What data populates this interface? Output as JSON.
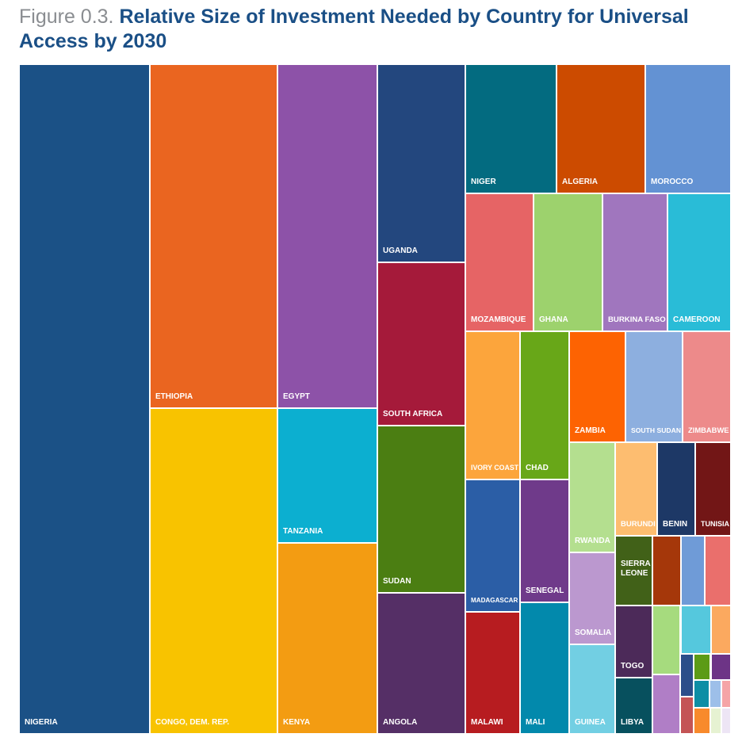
{
  "figure": {
    "prefix": "Figure 0.3.",
    "title": "Relative Size of Investment Needed by Country for Universal Access by 2030"
  },
  "chart_data": {
    "type": "treemap",
    "title": "Relative Size of Investment Needed by Country for Universal Access by 2030",
    "units": "relative investment (estimated from tile area, % of total)",
    "items": [
      {
        "label": "NIGERIA",
        "value": 18.0,
        "color": "#1b5186"
      },
      {
        "label": "ETHIOPIA",
        "value": 8.4,
        "color": "#ea6520"
      },
      {
        "label": "CONGO, DEM. REP.",
        "value": 8.3,
        "color": "#f8c300"
      },
      {
        "label": "EGYPT",
        "value": 6.7,
        "color": "#8d52a8"
      },
      {
        "label": "TANZANIA",
        "value": 2.6,
        "color": "#0cafd0"
      },
      {
        "label": "KENYA",
        "value": 3.8,
        "color": "#f39c12"
      },
      {
        "label": "UGANDA",
        "value": 3.4,
        "color": "#23477e"
      },
      {
        "label": "SOUTH AFRICA",
        "value": 2.8,
        "color": "#a51a3a"
      },
      {
        "label": "SUDAN",
        "value": 2.9,
        "color": "#4b7e12"
      },
      {
        "label": "ANGOLA",
        "value": 2.4,
        "color": "#552f66"
      },
      {
        "label": "NIGER",
        "value": 2.1,
        "color": "#036b80"
      },
      {
        "label": "ALGERIA",
        "value": 2.1,
        "color": "#cc4b00"
      },
      {
        "label": "MOROCCO",
        "value": 2.1,
        "color": "#6392d3"
      },
      {
        "label": "MOZAMBIQUE",
        "value": 1.7,
        "color": "#e66465"
      },
      {
        "label": "GHANA",
        "value": 1.7,
        "color": "#9dd26d"
      },
      {
        "label": "BURKINA FASO",
        "value": 1.6,
        "color": "#a076be"
      },
      {
        "label": "CAMEROON",
        "value": 1.7,
        "color": "#29bcd7"
      },
      {
        "label": "IVORY COAST",
        "value": 1.6,
        "color": "#fca53c"
      },
      {
        "label": "CHAD",
        "value": 1.5,
        "color": "#68a718"
      },
      {
        "label": "ZAMBIA",
        "value": 1.3,
        "color": "#fd6302"
      },
      {
        "label": "SOUTH SUDAN",
        "value": 1.3,
        "color": "#8dafdf"
      },
      {
        "label": "ZIMBABWE",
        "value": 1.3,
        "color": "#ed8a8a"
      },
      {
        "label": "MADAGASCAR",
        "value": 1.4,
        "color": "#2b5ea6"
      },
      {
        "label": "SENEGAL",
        "value": 1.4,
        "color": "#6f3a8a"
      },
      {
        "label": "RWANDA",
        "value": 0.9,
        "color": "#b4df8f"
      },
      {
        "label": "BURUNDI",
        "value": 0.7,
        "color": "#fdbd70"
      },
      {
        "label": "BENIN",
        "value": 0.6,
        "color": "#1d3866"
      },
      {
        "label": "TUNISIA",
        "value": 0.7,
        "color": "#721616"
      },
      {
        "label": "SIERRA LEONE",
        "value": 0.5,
        "color": "#416118"
      },
      {
        "label": "SOMALIA",
        "value": 0.8,
        "color": "#bb98cf"
      },
      {
        "label": "TOGO",
        "value": 0.6,
        "color": "#4c2a59"
      },
      {
        "label": "MALAWI",
        "value": 1.2,
        "color": "#b71c20"
      },
      {
        "label": "MALI",
        "value": 1.1,
        "color": "#0289ac"
      },
      {
        "label": "GUINEA",
        "value": 0.7,
        "color": "#72cfe3"
      },
      {
        "label": "LIBYA",
        "value": 0.4,
        "color": "#07505e"
      },
      {
        "label": "",
        "value": 0.3,
        "color": "#a5370a"
      },
      {
        "label": "",
        "value": 0.2,
        "color": "#6f9bd7"
      },
      {
        "label": "",
        "value": 0.3,
        "color": "#ea6f6c"
      },
      {
        "label": "",
        "value": 0.3,
        "color": "#a6db7e"
      },
      {
        "label": "",
        "value": 0.2,
        "color": "#55c8dd"
      },
      {
        "label": "",
        "value": 0.2,
        "color": "#fba95f"
      },
      {
        "label": "",
        "value": 0.3,
        "color": "#b07ec6"
      },
      {
        "label": "",
        "value": 0.1,
        "color": "#2b4e8a"
      },
      {
        "label": "",
        "value": 0.1,
        "color": "#c45455"
      },
      {
        "label": "",
        "value": 0.1,
        "color": "#5c9b16"
      },
      {
        "label": "",
        "value": 0.1,
        "color": "#6d3486"
      },
      {
        "label": "",
        "value": 0.1,
        "color": "#0d8ea5"
      },
      {
        "label": "",
        "value": 0.1,
        "color": "#9dbfe9"
      },
      {
        "label": "",
        "value": 0.1,
        "color": "#f5a4a7"
      },
      {
        "label": "",
        "value": 0.1,
        "color": "#f88a2c"
      },
      {
        "label": "",
        "value": 0.05,
        "color": "#e6f2d2"
      },
      {
        "label": "",
        "value": 0.05,
        "color": "#ede5f5"
      }
    ]
  }
}
